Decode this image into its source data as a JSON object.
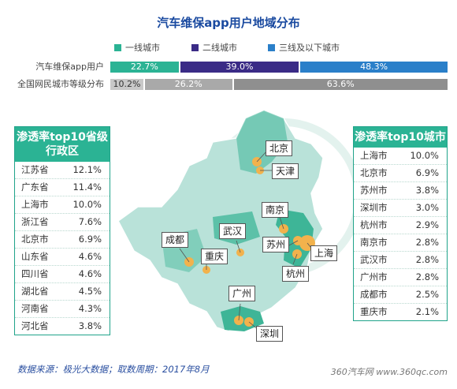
{
  "title": "汽车维保app用户地域分布",
  "legend": [
    {
      "label": "一线城市",
      "color": "#2bb394"
    },
    {
      "label": "二线城市",
      "color": "#3a2b86"
    },
    {
      "label": "三线及以下城市",
      "color": "#2a7fc9"
    }
  ],
  "colors": {
    "tier_grey": "#a9a9a9",
    "tier_grey_light": "#c8c8c8",
    "tier_grey_dark": "#8f8f8f",
    "map_region": "#b9e2d9",
    "map_highlight": "#3eb597",
    "dot": "#f2b24c"
  },
  "chart_data": [
    {
      "type": "bar",
      "stacked": true,
      "orientation": "horizontal",
      "title": "汽车维保app用户地域分布",
      "categories": [
        "汽车维保app用户",
        "全国网民城市等级分布"
      ],
      "series": [
        {
          "name": "一线城市",
          "values": [
            22.7,
            10.2
          ],
          "labels": [
            "22.7%",
            "10.2%"
          ]
        },
        {
          "name": "二线城市",
          "values": [
            39.0,
            26.2
          ],
          "labels": [
            "39.0%",
            "26.2%"
          ]
        },
        {
          "name": "三线及以下城市",
          "values": [
            48.3,
            63.6
          ],
          "labels": [
            "48.3%",
            "63.6%"
          ]
        }
      ]
    },
    {
      "type": "table",
      "title": "渗透率top10省级行政区",
      "rows": [
        {
          "name": "江苏省",
          "value": "12.1%"
        },
        {
          "name": "广东省",
          "value": "11.4%"
        },
        {
          "name": "上海市",
          "value": "10.0%"
        },
        {
          "name": "浙江省",
          "value": "7.6%"
        },
        {
          "name": "北京市",
          "value": "6.9%"
        },
        {
          "name": "山东省",
          "value": "4.6%"
        },
        {
          "name": "四川省",
          "value": "4.6%"
        },
        {
          "name": "湖北省",
          "value": "4.5%"
        },
        {
          "name": "河南省",
          "value": "4.3%"
        },
        {
          "name": "河北省",
          "value": "3.8%"
        }
      ]
    },
    {
      "type": "table",
      "title": "渗透率top10城市",
      "rows": [
        {
          "name": "上海市",
          "value": "10.0%"
        },
        {
          "name": "北京市",
          "value": "6.9%"
        },
        {
          "name": "苏州市",
          "value": "3.8%"
        },
        {
          "name": "深圳市",
          "value": "3.0%"
        },
        {
          "name": "杭州市",
          "value": "2.9%"
        },
        {
          "name": "南京市",
          "value": "2.8%"
        },
        {
          "name": "武汉市",
          "value": "2.8%"
        },
        {
          "name": "广州市",
          "value": "2.8%"
        },
        {
          "name": "成都市",
          "value": "2.5%"
        },
        {
          "name": "重庆市",
          "value": "2.1%"
        }
      ]
    }
  ],
  "map_cities": [
    "北京",
    "天津",
    "南京",
    "武汉",
    "成都",
    "苏州",
    "上海",
    "重庆",
    "杭州",
    "广州",
    "深圳"
  ],
  "source": "数据来源：极光大数据；取数周期：2017年8月",
  "brand": "360汽车网 www.360qc.com"
}
